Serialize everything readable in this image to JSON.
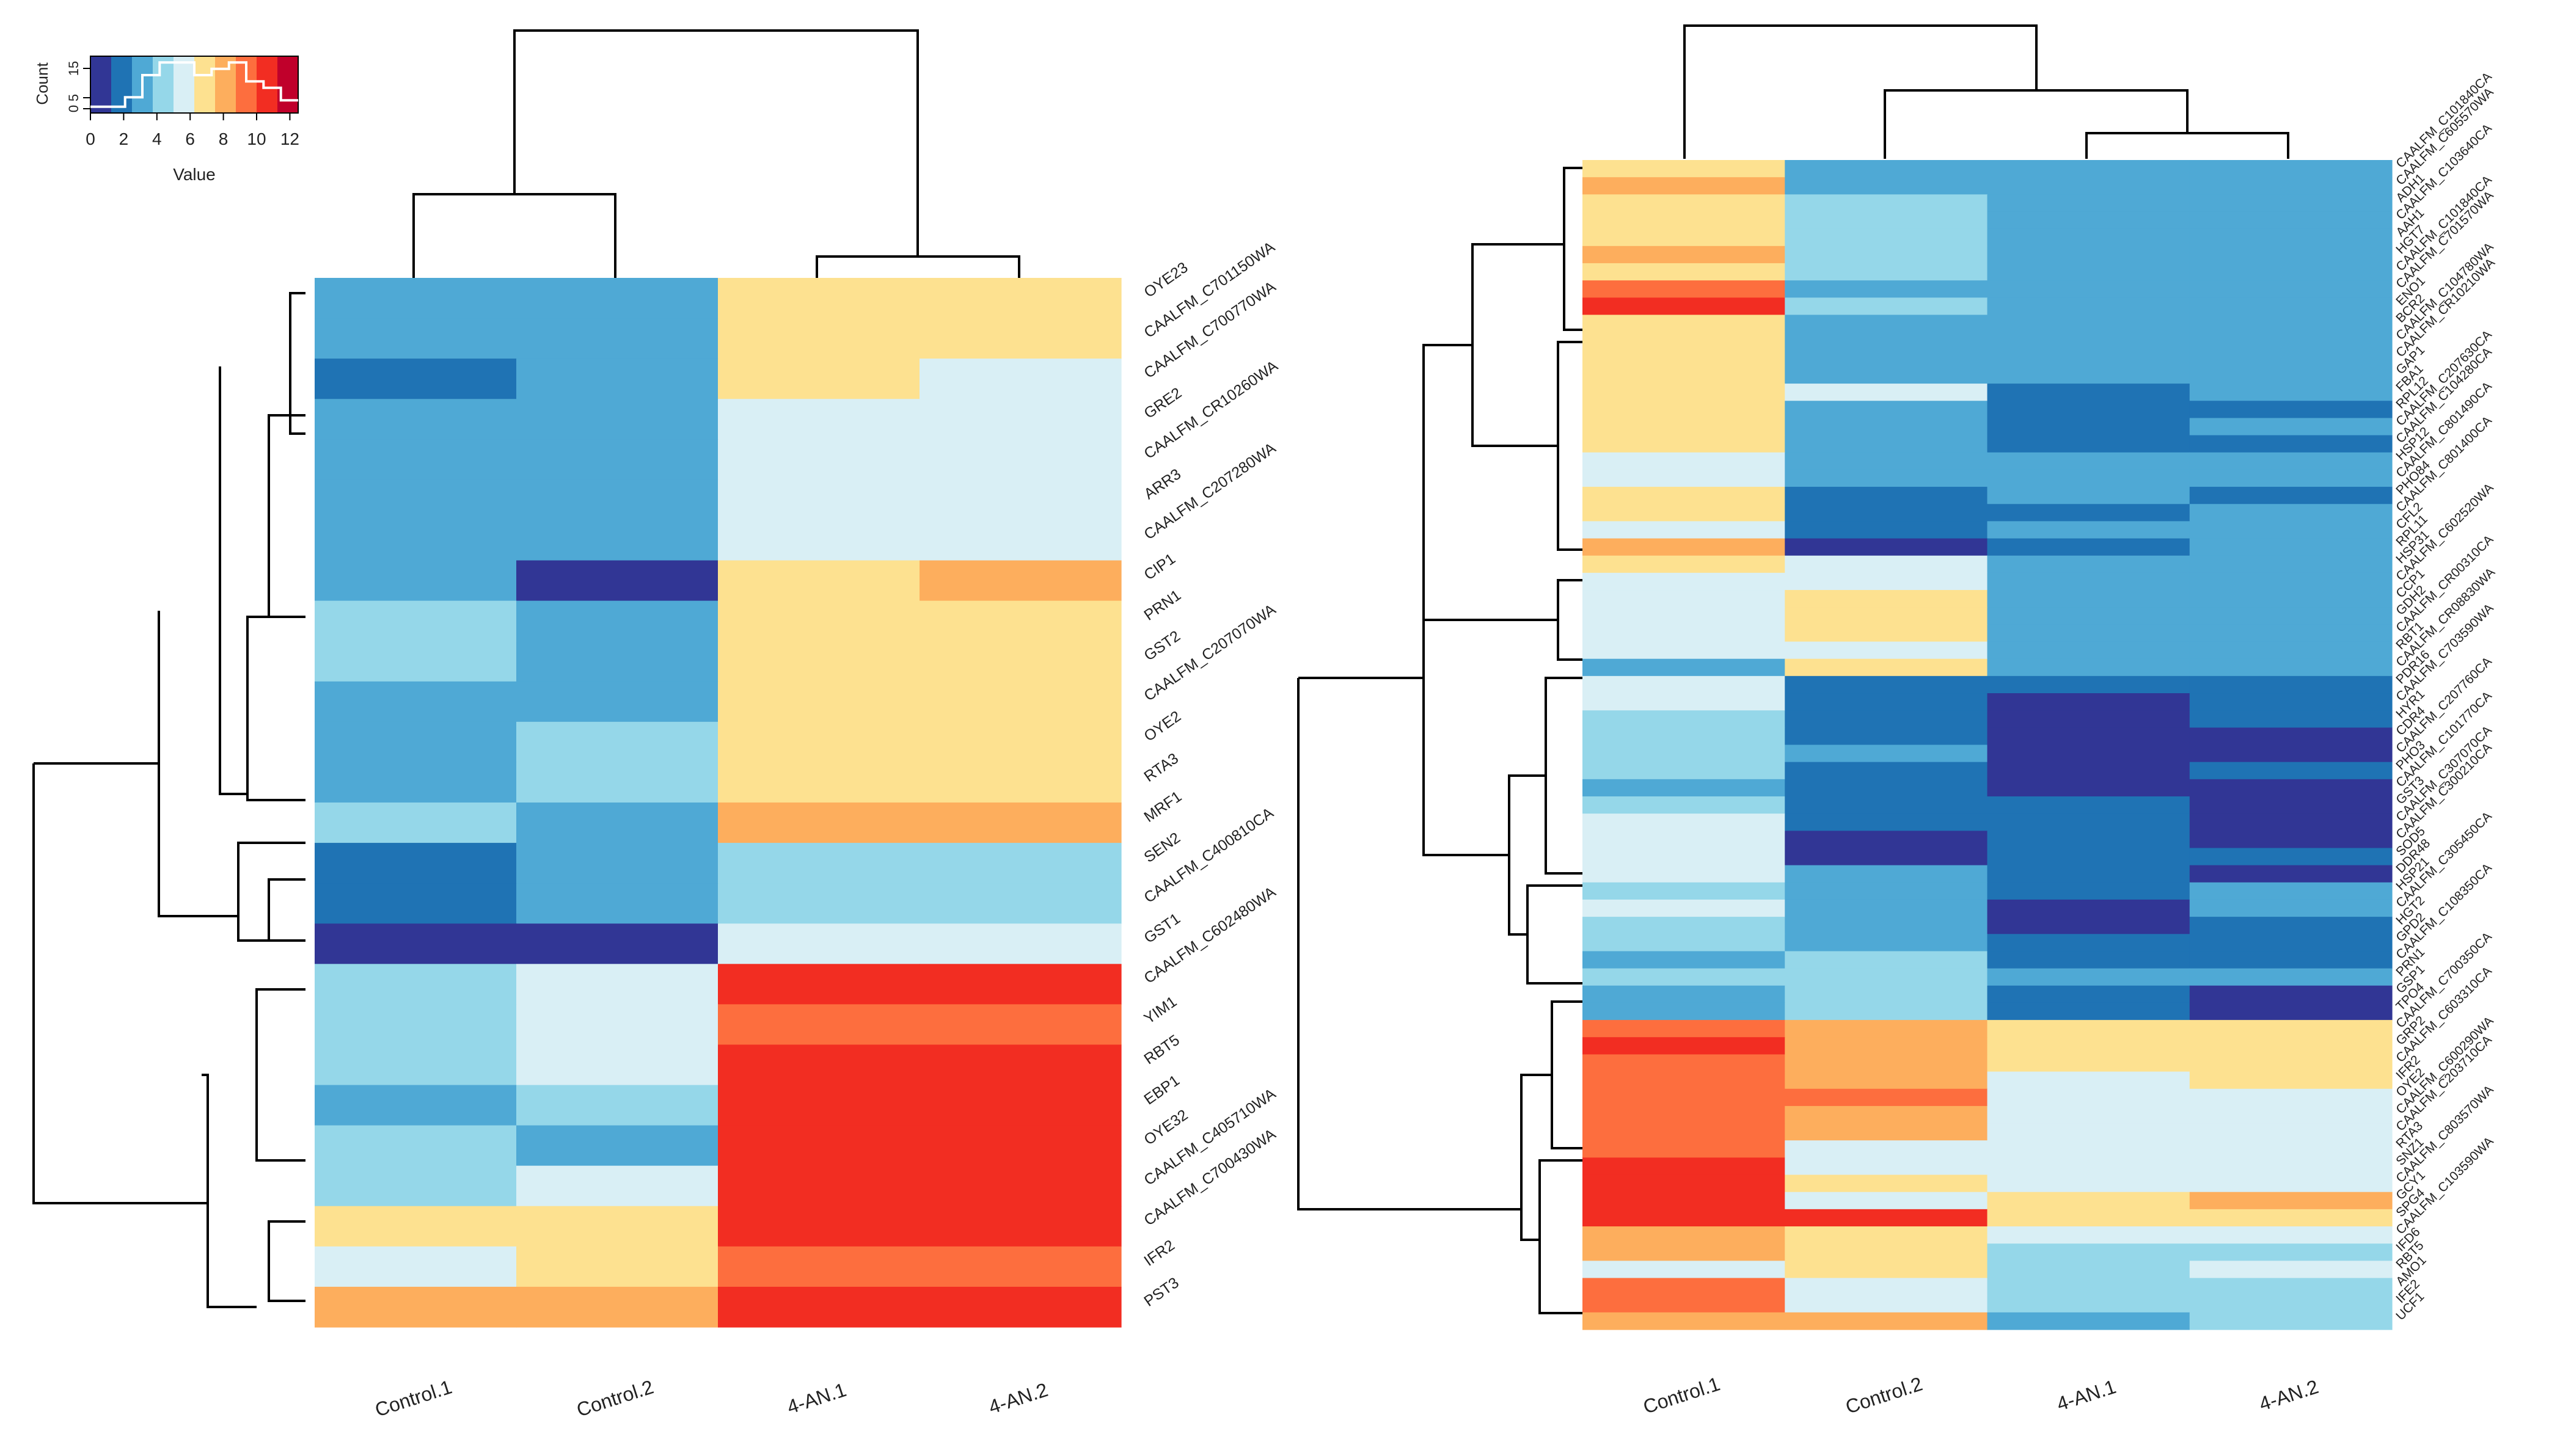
{
  "palette": [
    "#313695",
    "#1f73b4",
    "#4fa9d5",
    "#95d7e9",
    "#d9eff5",
    "#fde190",
    "#fdae5d",
    "#fd6e3e",
    "#f22d22",
    "#c0002b"
  ],
  "chart_data": [
    {
      "type": "heatmap",
      "id": "left",
      "columns": [
        "Control.1",
        "Control.2",
        "4-AN.1",
        "4-AN.2"
      ],
      "row_labels": [
        "OYE23",
        "CAALFM_C701150WA",
        "CAALFM_C700770WA",
        "GRE2",
        "CAALFM_CR10260WA",
        "ARR3",
        "CAALFM_C207280WA",
        "CIP1",
        "PRN1",
        "GST2",
        "CAALFM_C207070WA",
        "OYE2",
        "RTA3",
        "MRF1",
        "SEN2",
        "CAALFM_C400810CA",
        "GST1",
        "CAALFM_C602480WA",
        "YIM1",
        "RBT5",
        "EBP1",
        "OYE32",
        "CAALFM_C405710WA",
        "CAALFM_C700430WA",
        "IFR2",
        "PST3"
      ],
      "values": [
        [
          2.5,
          3.5,
          7,
          7
        ],
        [
          2.5,
          2.5,
          7,
          7
        ],
        [
          1.5,
          3.5,
          7,
          6
        ],
        [
          3.5,
          3.5,
          6,
          6
        ],
        [
          2.5,
          3.5,
          6,
          6
        ],
        [
          3.5,
          2.5,
          6,
          6
        ],
        [
          3.5,
          2.5,
          6,
          6
        ],
        [
          3.5,
          0.5,
          7,
          8
        ],
        [
          4.5,
          3.5,
          7,
          7
        ],
        [
          4.5,
          3.5,
          7,
          7
        ],
        [
          3.5,
          3.5,
          7,
          7
        ],
        [
          3.5,
          4.5,
          7,
          7
        ],
        [
          3.5,
          4.5,
          7,
          7
        ],
        [
          4.5,
          3.5,
          8,
          8
        ],
        [
          1.5,
          2.5,
          4.5,
          4.5
        ],
        [
          1.5,
          2.5,
          4.5,
          4.5
        ],
        [
          0.5,
          0.5,
          6,
          6
        ],
        [
          4.5,
          6,
          10,
          10
        ],
        [
          4.5,
          6,
          9,
          9
        ],
        [
          4.5,
          6,
          10,
          10
        ],
        [
          3.5,
          4.5,
          11,
          11
        ],
        [
          4.5,
          2.5,
          10,
          10
        ],
        [
          4.5,
          6,
          11,
          11
        ],
        [
          7,
          7,
          10,
          10
        ],
        [
          6,
          7,
          9,
          9
        ],
        [
          8,
          8,
          11,
          11
        ]
      ],
      "color_key": {
        "title": "Count",
        "xlabel": "Value",
        "x_ticks": [
          0,
          2,
          4,
          6,
          8,
          10,
          12
        ],
        "y_ticks": [
          "0",
          "5",
          "15"
        ],
        "range": [
          0,
          12.5
        ],
        "histogram_counts": [
          2,
          2,
          5,
          12,
          16,
          16,
          12,
          14,
          16,
          10,
          8,
          4
        ]
      }
    },
    {
      "type": "heatmap",
      "id": "right",
      "columns": [
        "Control.1",
        "Control.2",
        "4-AN.1",
        "4-AN.2"
      ],
      "row_labels": [
        "CAALFM_C101840CA",
        "CAALFM_C605570WA",
        "ADH1",
        "CAALFM_C103640CA",
        "AAH1",
        "HGT7",
        "CAALFM_C101840CA",
        "CAALFM_C701570WA",
        "ENO1",
        "BCR2",
        "CAALFM_C104780WA",
        "CAALFM_CR10210WA",
        "GAP1",
        "FBA1",
        "RPL12",
        "CAALFM_C207630CA",
        "CAALFM_C104280CA",
        "HSP12",
        "CAALFM_C801490CA",
        "PHO84",
        "CAALFM_C801400CA",
        "CFL2",
        "RPL11",
        "HSP31",
        "CAALFM_C602520WA",
        "CCP1",
        "GDH2",
        "CAALFM_CR00310CA",
        "RBT1",
        "CAALFM_CR08830WA",
        "PDR16",
        "CAALFM_C703590WA",
        "HYR1",
        "CDR4",
        "CAALFM_C207760CA",
        "PHO3",
        "CAALFM_C101770CA",
        "GST3",
        "CAALFM_C307070CA",
        "CAALFM_C300210CA",
        "SOD5",
        "DDR48",
        "HSP21",
        "CAALFM_C305450CA",
        "HGT2",
        "GPD2",
        "CAALFM_C108350CA",
        "PRN1",
        "GSP1",
        "TPO4",
        "CAALFM_C700350CA",
        "GRP2",
        "CAALFM_C603310CA",
        "IFR2",
        "OYE2",
        "CAALFM_C600290WA",
        "CAALFM_C203710CA",
        "RTA3",
        "SNZ1",
        "CAALFM_C803570WA",
        "GCY1",
        "SPG4",
        "CAALFM_C103590WA",
        "IFD6",
        "RBT5",
        "AMO1",
        "IFE2",
        "UCF1"
      ],
      "values": [
        [
          7,
          3.5,
          3.5,
          3.5
        ],
        [
          8,
          3.5,
          3.5,
          3.5
        ],
        [
          7,
          4.5,
          2.5,
          3.5
        ],
        [
          7,
          4.5,
          3.5,
          3.5
        ],
        [
          7,
          4.5,
          3.5,
          3.5
        ],
        [
          8,
          4.5,
          3.5,
          3.5
        ],
        [
          7,
          4.5,
          3.5,
          3.5
        ],
        [
          9,
          3.5,
          2.5,
          3.5
        ],
        [
          10,
          4.5,
          3.5,
          3.5
        ],
        [
          7,
          3.5,
          2.5,
          3.5
        ],
        [
          7,
          2.5,
          2.5,
          3.5
        ],
        [
          7,
          2.5,
          2.5,
          3.5
        ],
        [
          7,
          3.5,
          2.5,
          3.5
        ],
        [
          7,
          6,
          1.5,
          2.5
        ],
        [
          7,
          3.5,
          1.5,
          1.5
        ],
        [
          7,
          2.5,
          1.5,
          2.5
        ],
        [
          7,
          2.5,
          1.5,
          1.5
        ],
        [
          6,
          2.5,
          2.5,
          2.5
        ],
        [
          6,
          3.5,
          2.5,
          2.5
        ],
        [
          7,
          1.5,
          2.5,
          1.5
        ],
        [
          7,
          1.5,
          1.5,
          2.5
        ],
        [
          6,
          1.5,
          2.5,
          2.5
        ],
        [
          8,
          0.5,
          1.5,
          2.5
        ],
        [
          7,
          6,
          3.5,
          3.5
        ],
        [
          6,
          6,
          3.5,
          3.5
        ],
        [
          6,
          7,
          3.5,
          3.5
        ],
        [
          6,
          7,
          2.5,
          2.5
        ],
        [
          6,
          7,
          2.5,
          2.5
        ],
        [
          6,
          6,
          2.5,
          2.5
        ],
        [
          3.5,
          7,
          2.5,
          2.5
        ],
        [
          6,
          1.5,
          1.5,
          1.5
        ],
        [
          6,
          1.5,
          0.5,
          1.5
        ],
        [
          4.5,
          1.5,
          0.5,
          1.5
        ],
        [
          4.5,
          1.5,
          0.5,
          0.5
        ],
        [
          4.5,
          2.5,
          0.5,
          0.5
        ],
        [
          4.5,
          1.5,
          0.5,
          1.5
        ],
        [
          3.5,
          1.5,
          0.5,
          0.5
        ],
        [
          4.5,
          1.5,
          1.5,
          0.5
        ],
        [
          6,
          1.5,
          1.5,
          0.5
        ],
        [
          6,
          0.5,
          1.5,
          0.5
        ],
        [
          6,
          0.5,
          1.5,
          1.5
        ],
        [
          6,
          2.5,
          1.5,
          0.5
        ],
        [
          4.5,
          2.5,
          1.5,
          2.5
        ],
        [
          6,
          3.5,
          0.5,
          2.5
        ],
        [
          4.5,
          2.5,
          0.5,
          1.5
        ],
        [
          4.5,
          3.5,
          1.5,
          1.5
        ],
        [
          3.5,
          4.5,
          1.5,
          1.5
        ],
        [
          4.5,
          4.5,
          2.5,
          2.5
        ],
        [
          3.5,
          4.5,
          1.5,
          0.5
        ],
        [
          2.5,
          4.5,
          1.5,
          0.5
        ],
        [
          9,
          8,
          7,
          7
        ],
        [
          11,
          8,
          7,
          7
        ],
        [
          9,
          8,
          7,
          7
        ],
        [
          9,
          8,
          6,
          7
        ],
        [
          9,
          9,
          6,
          6
        ],
        [
          9,
          8,
          6,
          6
        ],
        [
          9,
          8,
          6,
          6
        ],
        [
          9,
          6,
          6,
          6
        ],
        [
          11,
          6,
          6,
          6
        ],
        [
          10,
          7,
          6,
          6
        ],
        [
          10,
          6,
          7,
          8
        ],
        [
          10,
          11,
          7,
          7
        ],
        [
          8,
          7,
          6,
          6
        ],
        [
          8,
          7,
          4.5,
          4.5
        ],
        [
          6,
          7,
          4.5,
          6
        ],
        [
          9,
          6,
          4.5,
          4.5
        ],
        [
          9,
          6,
          4.5,
          4.5
        ],
        [
          8,
          8,
          3.5,
          4.5
        ]
      ]
    }
  ]
}
